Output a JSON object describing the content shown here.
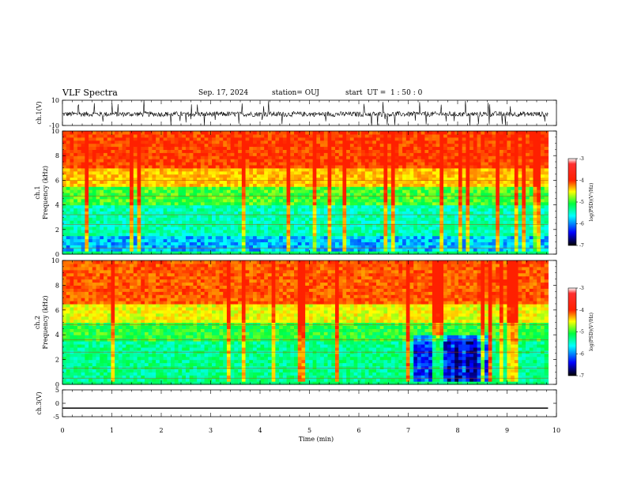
{
  "header": {
    "title": "VLF Spectra",
    "date": "Sep. 17, 2024",
    "station": "station= OUJ",
    "start": "start  UT =  1 : 50 : 0"
  },
  "chart_data": [
    {
      "type": "line",
      "panel": "ch1-waveform",
      "ylabel": "ch.1(V)",
      "ylim": [
        -10,
        10
      ],
      "y_ticks": [
        "10",
        "-10"
      ],
      "x_range_min": [
        0,
        9.83
      ],
      "description_level": "noisy waveform centered near -1 V with spikes to ±10 V"
    },
    {
      "type": "heatmap",
      "panel": "ch1-spectrogram",
      "ylabel_channel": "ch.1",
      "ylabel": "Frequency (kHz)",
      "ylim": [
        0,
        10
      ],
      "y_ticks": [
        "0",
        "2",
        "4",
        "6",
        "8",
        "10"
      ],
      "x_range_min": [
        0,
        9.83
      ],
      "colorbar": {
        "label": "log(PSD)(V²/Hz)",
        "range": [
          -7,
          -3
        ],
        "ticks": [
          "-3",
          "-4",
          "-5",
          "-6",
          "-7"
        ]
      }
    },
    {
      "type": "heatmap",
      "panel": "ch2-spectrogram",
      "ylabel_channel": "ch.2",
      "ylabel": "Frequency (kHz)",
      "ylim": [
        0,
        10
      ],
      "y_ticks": [
        "0",
        "2",
        "4",
        "6",
        "8",
        "10"
      ],
      "x_range_min": [
        0,
        9.83
      ],
      "colorbar": {
        "label": "log(PSD)(V²/Hz)",
        "range": [
          -7,
          -3
        ],
        "ticks": [
          "-3",
          "-4",
          "-5",
          "-6",
          "-7"
        ]
      }
    },
    {
      "type": "line",
      "panel": "ch3-waveform",
      "ylabel": "ch.3(V)",
      "ylim": [
        -5,
        5
      ],
      "y_ticks": [
        "5",
        "0",
        "-5"
      ],
      "level": -1.8,
      "x_range_min": [
        0,
        9.83
      ]
    }
  ],
  "x_axis": {
    "label": "Time (min)",
    "ticks": [
      "0",
      "1",
      "2",
      "3",
      "4",
      "5",
      "6",
      "7",
      "8",
      "9",
      "10"
    ],
    "range": [
      0,
      10
    ]
  },
  "colors": {
    "high": "#ff2000",
    "mid_high": "#ffff00",
    "mid": "#00ff40",
    "mid_low": "#00ffff",
    "low": "#0000ff",
    "lowest": "#000000"
  }
}
